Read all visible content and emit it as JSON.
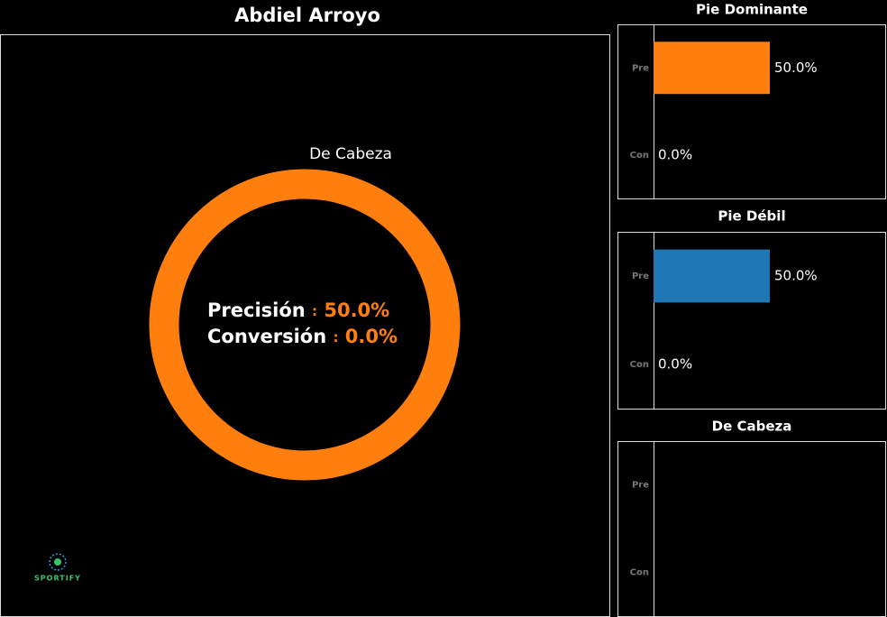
{
  "title": "Abdiel Arroyo",
  "logo": "SPORTIFY",
  "chart_data": [
    {
      "type": "donut",
      "categories": [
        "De Cabeza"
      ],
      "values": [
        100
      ],
      "colors": [
        "#ff7f0e"
      ],
      "center_labels": [
        {
          "name": "Precisión",
          "separator": ":",
          "value": "50.0%"
        },
        {
          "name": "Conversión",
          "separator": ":",
          "value": "0.0%"
        }
      ]
    },
    {
      "type": "hbar",
      "title": "Pie Dominante",
      "categories": [
        "Pre",
        "Con"
      ],
      "values": [
        50,
        0
      ],
      "value_labels": [
        "50.0%",
        "0.0%"
      ],
      "color": "#ff7f0e",
      "xlim": [
        0,
        100
      ]
    },
    {
      "type": "hbar",
      "title": "Pie Débil",
      "categories": [
        "Pre",
        "Con"
      ],
      "values": [
        50,
        0
      ],
      "value_labels": [
        "50.0%",
        "0.0%"
      ],
      "color": "#1f77b4",
      "xlim": [
        0,
        100
      ]
    },
    {
      "type": "hbar",
      "title": "De Cabeza",
      "categories": [
        "Pre",
        "Con"
      ],
      "values": [
        null,
        null
      ],
      "color": "#ff7f0e",
      "xlim": [
        0,
        100
      ]
    }
  ]
}
